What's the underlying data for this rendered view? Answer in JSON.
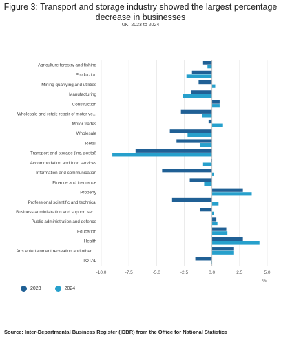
{
  "title": "Figure 3: Transport and storage industry showed the largest percentage decrease in businesses",
  "subtitle": "UK, 2023 to 2024",
  "source": "Source: Inter-Departmental Business Register (IDBR) from the Office for National Statistics",
  "colors": {
    "2023": "#206095",
    "2024": "#27a0cc",
    "axis": "#bbbbbb",
    "grid": "#e6e6e6"
  },
  "chart_data": {
    "type": "bar",
    "orientation": "horizontal",
    "categories": [
      "Agriculture forestry and fishing",
      "Production",
      "Mining quarrying and utilities",
      "Manufacturing",
      "Construction",
      "Wholesale and retail; repair of motor ve...",
      "Motor trades",
      "Wholesale",
      "Retail",
      "Transport and storage (inc. postal)",
      "Accommodation and food services",
      "Information and communication",
      "Finance and insurance",
      "Property",
      "Professional scientific and technical",
      "Business administration and support ser...",
      "Public administration and defence",
      "Education",
      "Health",
      "Arts entertainment recreation and other ...",
      "TOTAL"
    ],
    "series": [
      {
        "name": "2023",
        "values": [
          -0.8,
          -1.8,
          -1.2,
          -1.9,
          0.7,
          -2.8,
          -0.3,
          -3.8,
          -3.2,
          -6.9,
          -0.1,
          -4.5,
          -2.0,
          2.8,
          -3.6,
          -1.1,
          0.4,
          1.3,
          2.8,
          2.0,
          -1.5
        ]
      },
      {
        "name": "2024",
        "values": [
          -0.4,
          -2.3,
          0.3,
          -2.6,
          0.7,
          -0.9,
          1.0,
          -2.2,
          -1.1,
          -9.0,
          -0.8,
          0.2,
          -0.7,
          3.6,
          0.6,
          0.2,
          0.5,
          1.4,
          4.3,
          2.0,
          -0.05
        ]
      }
    ],
    "xlim": [
      -10.0,
      5.0
    ],
    "xticks": [
      "-10.0",
      "-7.5",
      "-5.0",
      "-2.5",
      "0.0",
      "2.5",
      "5.0"
    ],
    "xtick_values": [
      -10.0,
      -7.5,
      -5.0,
      -2.5,
      0.0,
      2.5,
      5.0
    ],
    "xlabel": "%",
    "grid": true,
    "legend": "bottom-left"
  }
}
